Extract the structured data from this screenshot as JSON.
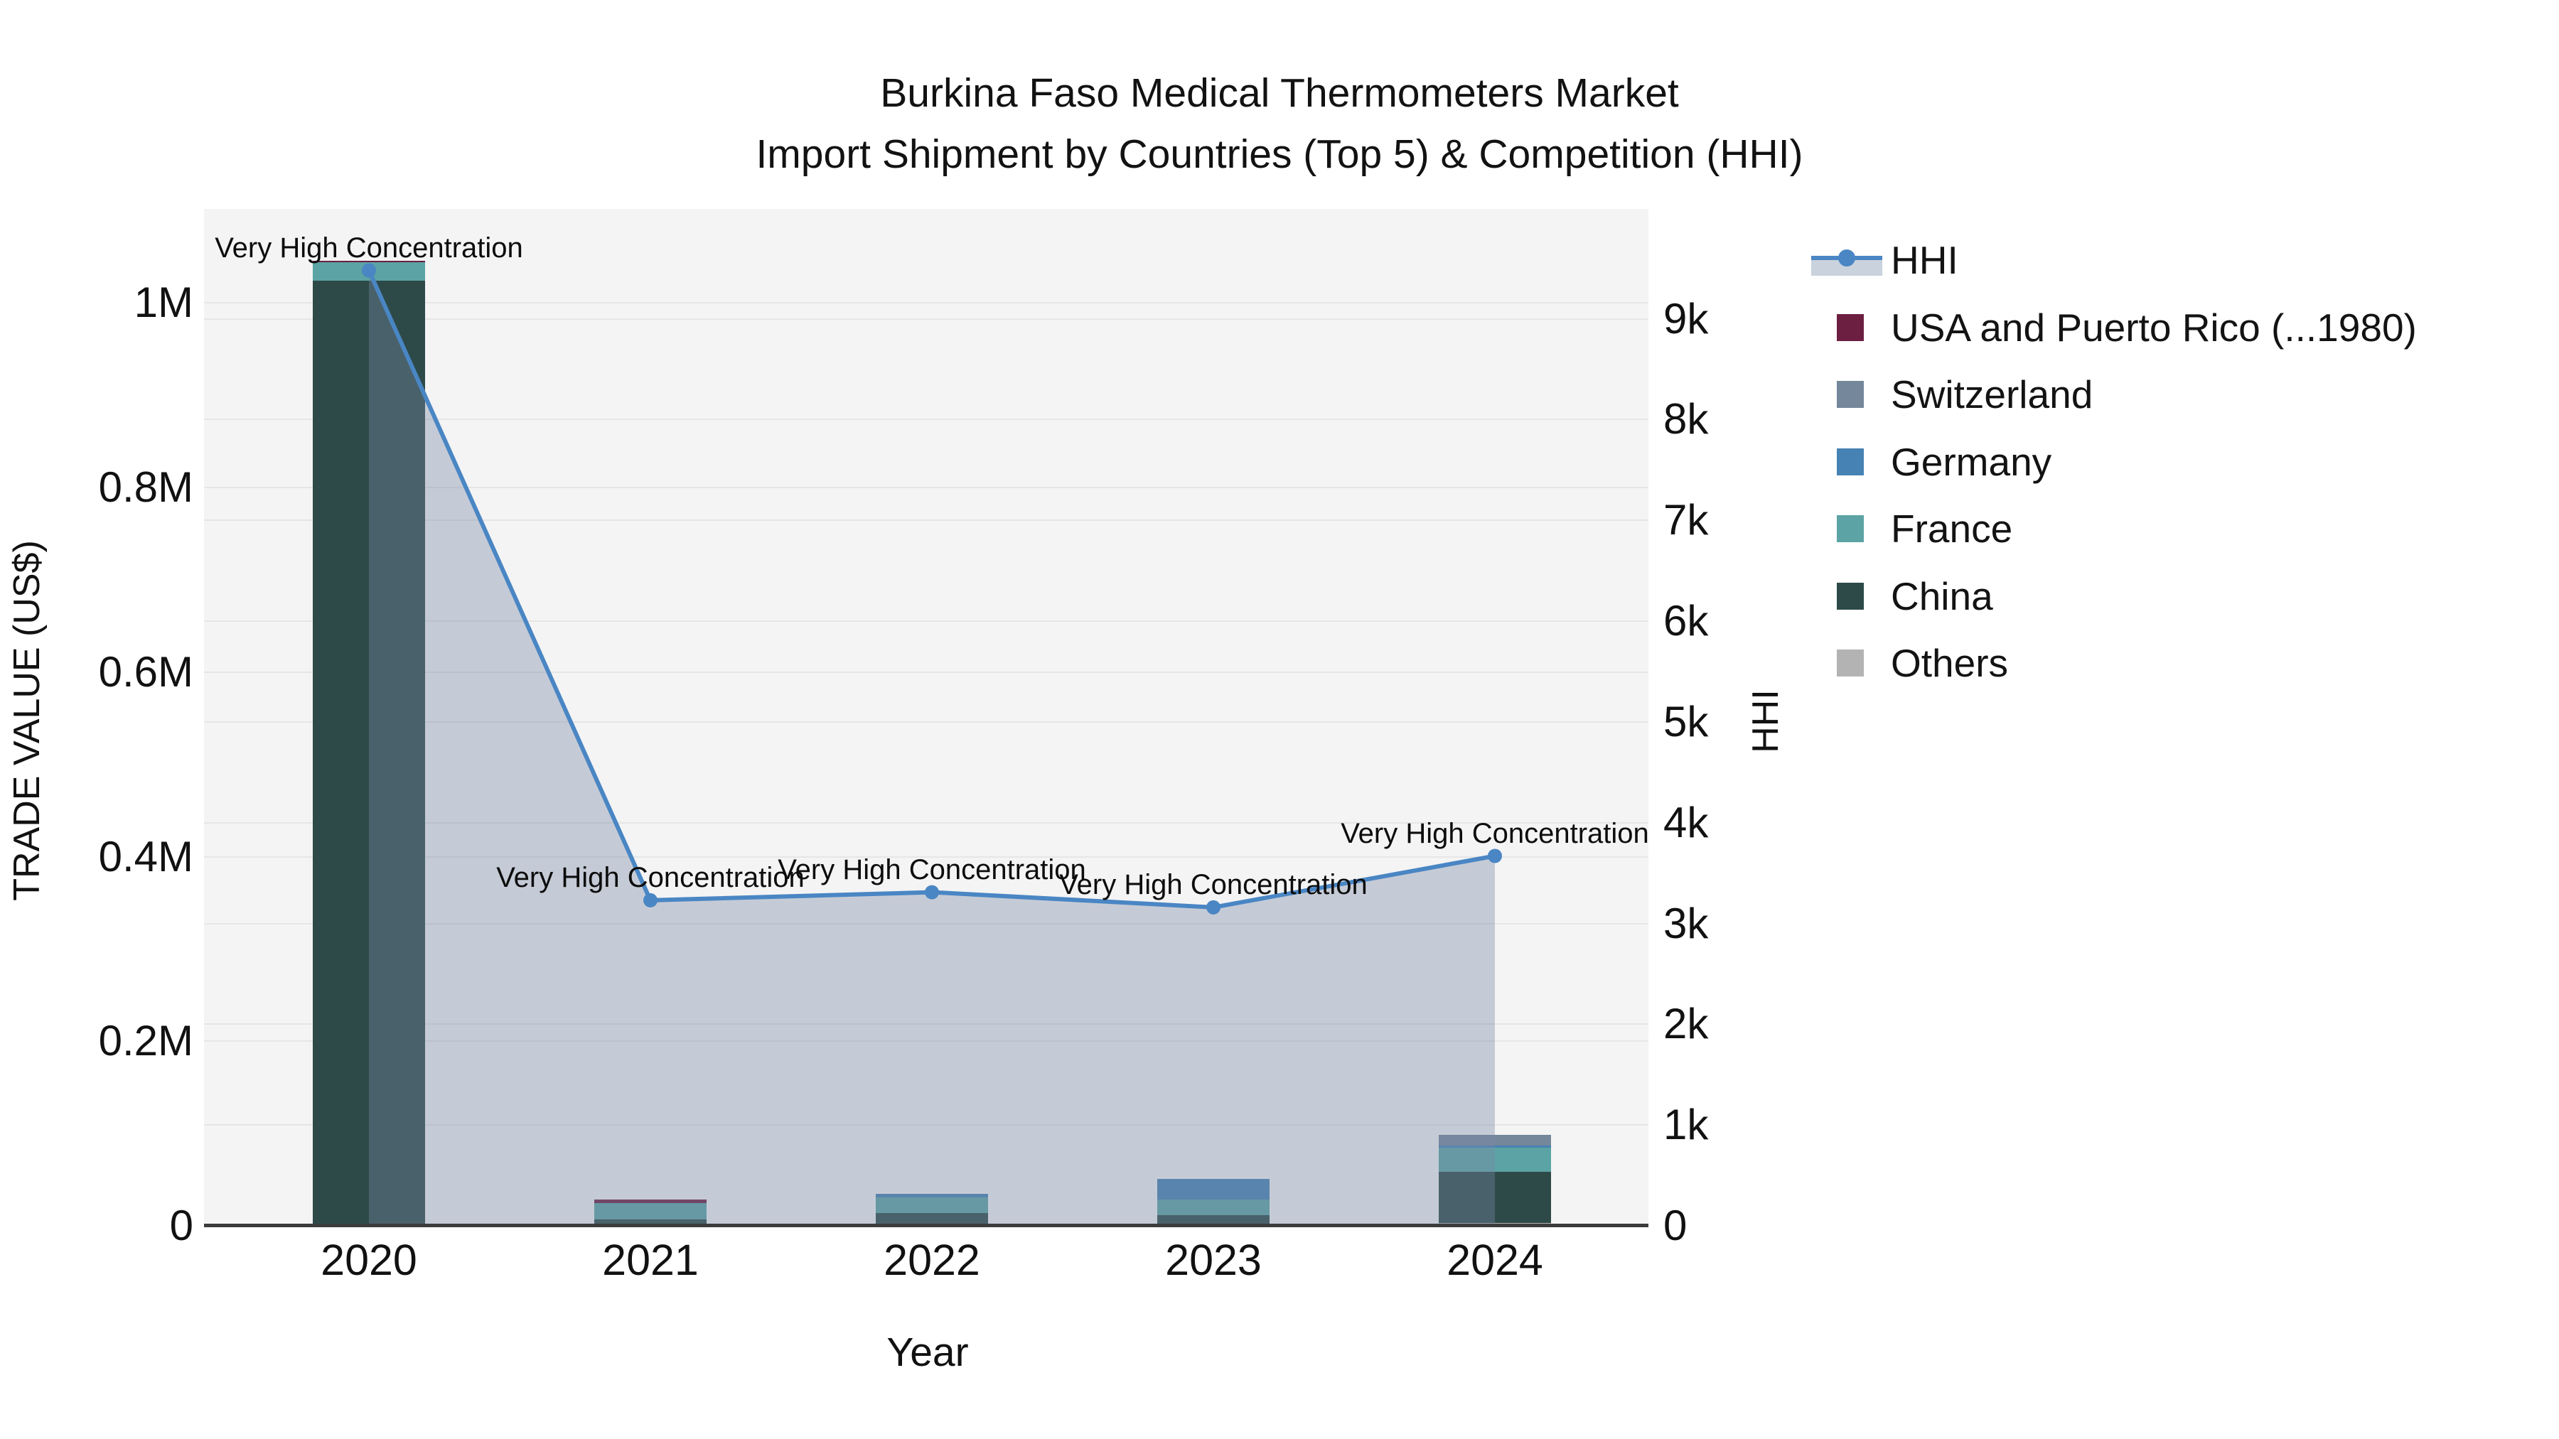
{
  "title": {
    "line1": "Burkina Faso Medical Thermometers Market",
    "line2": "Import Shipment by Countries (Top 5) & Competition (HHI)"
  },
  "axes": {
    "x_label": "Year",
    "y_left_label": "TRADE VALUE (US$)",
    "y_right_label": "HHI",
    "y_left_ticks": [
      {
        "label": "0",
        "value": 0
      },
      {
        "label": "0.2M",
        "value": 200000
      },
      {
        "label": "0.4M",
        "value": 400000
      },
      {
        "label": "0.6M",
        "value": 600000
      },
      {
        "label": "0.8M",
        "value": 800000
      },
      {
        "label": "1M",
        "value": 1000000
      }
    ],
    "y_right_ticks": [
      {
        "label": "0",
        "value": 0
      },
      {
        "label": "1k",
        "value": 1000
      },
      {
        "label": "2k",
        "value": 2000
      },
      {
        "label": "3k",
        "value": 3000
      },
      {
        "label": "4k",
        "value": 4000
      },
      {
        "label": "5k",
        "value": 5000
      },
      {
        "label": "6k",
        "value": 6000
      },
      {
        "label": "7k",
        "value": 7000
      },
      {
        "label": "8k",
        "value": 8000
      },
      {
        "label": "9k",
        "value": 9000
      }
    ]
  },
  "legend": {
    "items": [
      {
        "label": "HHI",
        "type": "line",
        "color": "#4a86c4",
        "band_color": "#c9d2dd"
      },
      {
        "label": "USA and Puerto Rico (...1980)",
        "type": "swatch",
        "color": "#6d1f42"
      },
      {
        "label": "Switzerland",
        "type": "swatch",
        "color": "#74879b"
      },
      {
        "label": "Germany",
        "type": "swatch",
        "color": "#4682b4"
      },
      {
        "label": "France",
        "type": "swatch",
        "color": "#5ba3a4"
      },
      {
        "label": "China",
        "type": "swatch",
        "color": "#2d4a48"
      },
      {
        "label": "Others",
        "type": "swatch",
        "color": "#b3b3b3"
      }
    ]
  },
  "chart_data": {
    "type": "combo: stacked-bar + line (secondary axis)",
    "title": "Burkina Faso Medical Thermometers Market — Import Shipment by Countries (Top 5) & Competition (HHI)",
    "categories": [
      "2020",
      "2021",
      "2022",
      "2023",
      "2024"
    ],
    "xlabel": "Year",
    "ylabel_left": "TRADE VALUE (US$)",
    "ylabel_right": "HHI",
    "ylim_left": [
      0,
      1102000
    ],
    "ylim_right": [
      0,
      10090
    ],
    "grid": true,
    "legend_position": "right",
    "bar_series_stack_order_bottom_to_top": [
      {
        "name": "Others",
        "color": "#b3b3b3",
        "values": [
          0,
          1500,
          0,
          0,
          3300
        ]
      },
      {
        "name": "China",
        "color": "#2d4a48",
        "values": [
          1024000,
          5400,
          13900,
          11600,
          55200
        ]
      },
      {
        "name": "France",
        "color": "#5ba3a4",
        "values": [
          20000,
          17700,
          16700,
          16700,
          26200
        ]
      },
      {
        "name": "Germany",
        "color": "#4682b4",
        "values": [
          0,
          0,
          3900,
          22600,
          2600
        ]
      },
      {
        "name": "Switzerland",
        "color": "#74879b",
        "values": [
          0,
          0,
          0,
          0,
          11000
        ]
      },
      {
        "name": "USA and Puerto Rico (...1980)",
        "color": "#6d1f42",
        "values": [
          1500,
          3800,
          0,
          0,
          0
        ]
      }
    ],
    "line_series": {
      "name": "HHI",
      "color": "#4a86c4",
      "band_fill": "rgba(122,138,165,0.38)",
      "values": [
        9480,
        3230,
        3310,
        3160,
        3670
      ],
      "annotations": [
        "Very High Concentration",
        "Very High Concentration",
        "Very High Concentration",
        "Very High Concentration",
        "Very High Concentration"
      ]
    }
  }
}
